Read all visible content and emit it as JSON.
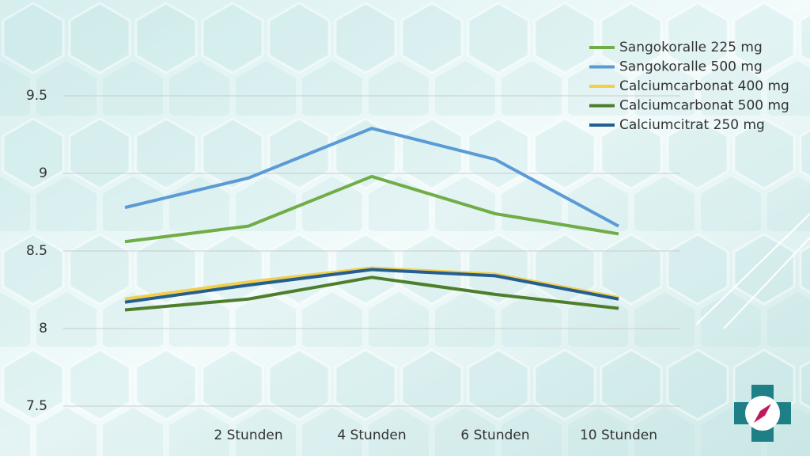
{
  "chart_data": {
    "type": "line",
    "categories": [
      null,
      "2 Stunden",
      "4 Stunden",
      "6 Stunden",
      "10 Stunden"
    ],
    "series": [
      {
        "name": "Sangokoralle 225 mg",
        "color": "#70ad47",
        "values": [
          8.56,
          8.66,
          8.98,
          8.74,
          8.61
        ]
      },
      {
        "name": "Sangokoralle 500 mg",
        "color": "#5b9bd5",
        "values": [
          8.78,
          8.97,
          9.29,
          9.09,
          8.66
        ]
      },
      {
        "name": "Calciumcarbonat 400 mg",
        "color": "#f2cf4a",
        "values": [
          8.19,
          8.3,
          8.39,
          8.35,
          8.2
        ]
      },
      {
        "name": "Calciumcarbonat 500 mg",
        "color": "#4e7d2c",
        "values": [
          8.12,
          8.19,
          8.33,
          8.22,
          8.13
        ]
      },
      {
        "name": "Calciumcitrat 250 mg",
        "color": "#255e91",
        "values": [
          8.17,
          8.28,
          8.38,
          8.34,
          8.19
        ]
      }
    ],
    "ylim": [
      7.5,
      9.5
    ],
    "yticks": [
      7.5,
      8,
      8.5,
      9,
      9.5
    ],
    "grid": true,
    "legend": "top-right"
  }
}
